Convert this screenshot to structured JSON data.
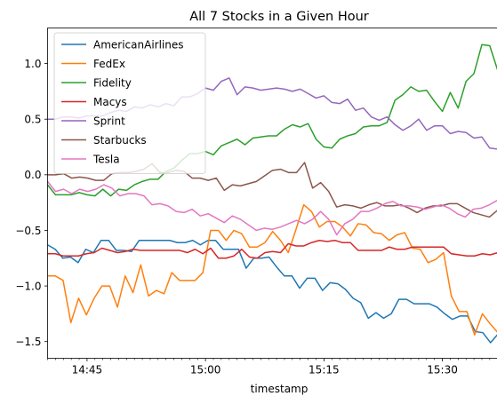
{
  "chart_data": {
    "type": "line",
    "title": "All 7 Stocks in a Given Hour",
    "xlabel": "timestamp",
    "ylabel": "",
    "x_start_minute": 40,
    "x_end_minute": 99,
    "x_ticks": [
      {
        "minute": 45,
        "label": "14:45"
      },
      {
        "minute": 60,
        "label": "15:00"
      },
      {
        "minute": 75,
        "label": "15:15"
      },
      {
        "minute": 90,
        "label": "15:30"
      }
    ],
    "ylim": [
      -1.65,
      1.32
    ],
    "y_ticks": [
      {
        "value": 1.0,
        "label": "1.0"
      },
      {
        "value": 0.5,
        "label": "0.5"
      },
      {
        "value": 0.0,
        "label": "0.0"
      },
      {
        "value": -0.5,
        "label": "−0.5"
      },
      {
        "value": -1.0,
        "label": "−1.0"
      },
      {
        "value": -1.5,
        "label": "−1.5"
      }
    ],
    "grid": false,
    "legend_position": "top-left",
    "series": [
      {
        "name": "AmericanAirlines",
        "color": "#1f77b4",
        "values": [
          -0.63,
          -0.67,
          -0.75,
          -0.74,
          -0.79,
          -0.67,
          -0.7,
          -0.59,
          -0.59,
          -0.68,
          -0.68,
          -0.69,
          -0.59,
          -0.59,
          -0.59,
          -0.59,
          -0.59,
          -0.61,
          -0.61,
          -0.59,
          -0.63,
          -0.59,
          -0.59,
          -0.67,
          -0.67,
          -0.67,
          -0.84,
          -0.75,
          -0.75,
          -0.74,
          -0.83,
          -0.91,
          -0.91,
          -1.02,
          -0.93,
          -0.93,
          -1.04,
          -0.97,
          -0.98,
          -1.03,
          -1.11,
          -1.15,
          -1.29,
          -1.24,
          -1.29,
          -1.25,
          -1.12,
          -1.12,
          -1.16,
          -1.16,
          -1.16,
          -1.19,
          -1.25,
          -1.3,
          -1.27,
          -1.27,
          -1.41,
          -1.42,
          -1.51,
          -1.43,
          -1.38,
          -1.46
        ]
      },
      {
        "name": "FedEx",
        "color": "#ff7f0e",
        "values": [
          -0.91,
          -0.91,
          -0.95,
          -1.33,
          -1.11,
          -1.26,
          -1.11,
          -1.0,
          -1.0,
          -1.19,
          -0.91,
          -1.06,
          -0.81,
          -1.09,
          -1.04,
          -1.07,
          -0.88,
          -0.95,
          -0.95,
          -0.95,
          -0.88,
          -0.5,
          -0.5,
          -0.59,
          -0.5,
          -0.53,
          -0.65,
          -0.65,
          -0.61,
          -0.51,
          -0.59,
          -0.7,
          -0.49,
          -0.27,
          -0.33,
          -0.47,
          -0.42,
          -0.42,
          -0.47,
          -0.55,
          -0.44,
          -0.45,
          -0.52,
          -0.53,
          -0.59,
          -0.54,
          -0.52,
          -0.66,
          -0.67,
          -0.79,
          -0.76,
          -0.7,
          -1.09,
          -1.23,
          -1.23,
          -1.44,
          -1.25,
          -1.34,
          -1.42,
          -1.35,
          -1.24
        ]
      },
      {
        "name": "Fidelity",
        "color": "#2ca02c",
        "values": [
          -0.09,
          -0.18,
          -0.18,
          -0.18,
          -0.16,
          -0.18,
          -0.19,
          -0.13,
          -0.19,
          -0.13,
          -0.14,
          -0.09,
          -0.06,
          -0.04,
          -0.04,
          0.03,
          0.06,
          0.13,
          0.19,
          0.19,
          0.21,
          0.18,
          0.26,
          0.29,
          0.32,
          0.27,
          0.33,
          0.34,
          0.35,
          0.35,
          0.41,
          0.45,
          0.43,
          0.46,
          0.32,
          0.25,
          0.24,
          0.32,
          0.35,
          0.37,
          0.43,
          0.44,
          0.44,
          0.47,
          0.67,
          0.72,
          0.79,
          0.75,
          0.76,
          0.66,
          0.57,
          0.74,
          0.6,
          0.84,
          0.91,
          1.17,
          1.16,
          0.94,
          0.86,
          0.77
        ]
      },
      {
        "name": "Macys",
        "color": "#d62728",
        "values": [
          -0.71,
          -0.71,
          -0.73,
          -0.73,
          -0.73,
          -0.71,
          -0.7,
          -0.66,
          -0.68,
          -0.7,
          -0.69,
          -0.67,
          -0.68,
          -0.68,
          -0.68,
          -0.68,
          -0.68,
          -0.68,
          -0.7,
          -0.67,
          -0.71,
          -0.66,
          -0.75,
          -0.75,
          -0.73,
          -0.67,
          -0.74,
          -0.75,
          -0.7,
          -0.69,
          -0.7,
          -0.62,
          -0.64,
          -0.64,
          -0.61,
          -0.59,
          -0.6,
          -0.59,
          -0.61,
          -0.61,
          -0.68,
          -0.68,
          -0.68,
          -0.68,
          -0.65,
          -0.67,
          -0.67,
          -0.65,
          -0.65,
          -0.65,
          -0.65,
          -0.65,
          -0.71,
          -0.72,
          -0.73,
          -0.73,
          -0.71,
          -0.72,
          -0.7,
          -0.71,
          -0.71
        ]
      },
      {
        "name": "Sprint",
        "color": "#9467bd",
        "values": [
          0.5,
          0.5,
          0.52,
          0.52,
          0.51,
          0.53,
          0.53,
          0.53,
          0.56,
          0.58,
          0.57,
          0.61,
          0.6,
          0.63,
          0.61,
          0.64,
          0.62,
          0.7,
          0.7,
          0.73,
          0.78,
          0.76,
          0.84,
          0.87,
          0.72,
          0.79,
          0.78,
          0.76,
          0.77,
          0.78,
          0.77,
          0.75,
          0.77,
          0.73,
          0.69,
          0.71,
          0.65,
          0.64,
          0.68,
          0.58,
          0.6,
          0.52,
          0.49,
          0.52,
          0.45,
          0.4,
          0.44,
          0.5,
          0.4,
          0.44,
          0.44,
          0.37,
          0.39,
          0.38,
          0.33,
          0.34,
          0.24,
          0.23,
          0.26,
          0.16
        ]
      },
      {
        "name": "Starbucks",
        "color": "#8c564b",
        "values": [
          0.0,
          0.0,
          0.01,
          -0.03,
          -0.02,
          -0.03,
          -0.05,
          -0.05,
          0.01,
          0.02,
          0.02,
          0.03,
          0.05,
          0.1,
          0.02,
          0.02,
          0.04,
          0.03,
          -0.03,
          -0.03,
          -0.05,
          -0.03,
          -0.14,
          -0.09,
          -0.1,
          -0.08,
          -0.06,
          -0.01,
          0.04,
          0.05,
          0.02,
          0.02,
          0.11,
          -0.12,
          -0.07,
          -0.15,
          -0.29,
          -0.27,
          -0.28,
          -0.3,
          -0.27,
          -0.25,
          -0.28,
          -0.28,
          -0.27,
          -0.3,
          -0.34,
          -0.3,
          -0.28,
          -0.28,
          -0.26,
          -0.26,
          -0.3,
          -0.34,
          -0.36,
          -0.38,
          -0.32,
          -0.29,
          -0.29
        ]
      },
      {
        "name": "Tesla",
        "color": "#e377c2",
        "values": [
          -0.06,
          -0.15,
          -0.13,
          -0.17,
          -0.13,
          -0.15,
          -0.13,
          -0.09,
          -0.12,
          -0.19,
          -0.17,
          -0.17,
          -0.19,
          -0.27,
          -0.26,
          -0.28,
          -0.33,
          -0.34,
          -0.31,
          -0.37,
          -0.35,
          -0.39,
          -0.43,
          -0.37,
          -0.4,
          -0.45,
          -0.5,
          -0.48,
          -0.49,
          -0.47,
          -0.44,
          -0.41,
          -0.44,
          -0.4,
          -0.33,
          -0.4,
          -0.54,
          -0.44,
          -0.4,
          -0.33,
          -0.33,
          -0.3,
          -0.26,
          -0.24,
          -0.28,
          -0.28,
          -0.29,
          -0.31,
          -0.29,
          -0.27,
          -0.3,
          -0.35,
          -0.38,
          -0.31,
          -0.3,
          -0.27,
          -0.23,
          -0.2,
          -0.15
        ]
      }
    ]
  }
}
